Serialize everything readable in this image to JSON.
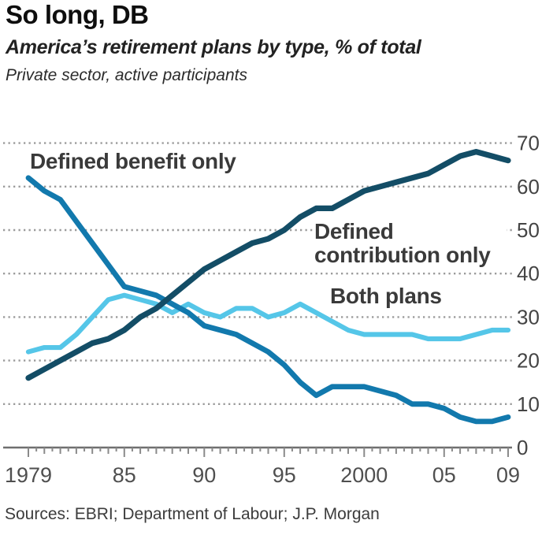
{
  "header": {
    "title": "So long, DB",
    "subtitle": "America’s retirement plans by type, % of total",
    "subtitle2": "Private sector, active participants"
  },
  "footer": {
    "source": "Sources: EBRI; Department of Labour; J.P. Morgan"
  },
  "annotations": {
    "db": "Defined benefit only",
    "dc": "Defined contribution only",
    "both": "Both plans"
  },
  "chart_data": {
    "type": "line",
    "title": "So long, DB",
    "subtitle": "America's retirement plans by type, % of total",
    "note": "Private sector, active participants",
    "xlabel": "",
    "ylabel": "% of total",
    "ylim": [
      0,
      70
    ],
    "yticks": [
      0,
      10,
      20,
      30,
      40,
      50,
      60,
      70
    ],
    "grid": "horizontal dotted",
    "legend": "inline labels on chart",
    "y_axis_side": "right",
    "x": [
      1979,
      1980,
      1981,
      1982,
      1983,
      1984,
      1985,
      1986,
      1987,
      1988,
      1989,
      1990,
      1991,
      1992,
      1993,
      1994,
      1995,
      1996,
      1997,
      1998,
      1999,
      2000,
      2001,
      2002,
      2003,
      2004,
      2005,
      2006,
      2007,
      2008,
      2009
    ],
    "xticks": [
      {
        "label": "1979",
        "year": 1979
      },
      {
        "label": "85",
        "year": 1985
      },
      {
        "label": "90",
        "year": 1990
      },
      {
        "label": "95",
        "year": 1995
      },
      {
        "label": "2000",
        "year": 2000
      },
      {
        "label": "05",
        "year": 2005
      },
      {
        "label": "09",
        "year": 2009
      }
    ],
    "series": [
      {
        "name": "Defined benefit only",
        "color": "#1279ad",
        "values": [
          62,
          59,
          57,
          52,
          47,
          42,
          37,
          36,
          35,
          33,
          31,
          28,
          27,
          26,
          24,
          22,
          19,
          15,
          12,
          14,
          14,
          14,
          13,
          12,
          10,
          10,
          9,
          7,
          6,
          6,
          7
        ]
      },
      {
        "name": "Defined contribution only",
        "color": "#134d66",
        "values": [
          16,
          18,
          20,
          22,
          24,
          25,
          27,
          30,
          32,
          35,
          38,
          41,
          43,
          45,
          47,
          48,
          50,
          53,
          55,
          55,
          57,
          59,
          60,
          61,
          62,
          63,
          65,
          67,
          68,
          67,
          66
        ]
      },
      {
        "name": "Both plans",
        "color": "#55c6e8",
        "values": [
          22,
          23,
          23,
          26,
          30,
          34,
          35,
          34,
          33,
          31,
          33,
          31,
          30,
          32,
          32,
          30,
          31,
          33,
          31,
          29,
          27,
          26,
          26,
          26,
          26,
          25,
          25,
          25,
          26,
          27,
          27
        ]
      }
    ]
  }
}
